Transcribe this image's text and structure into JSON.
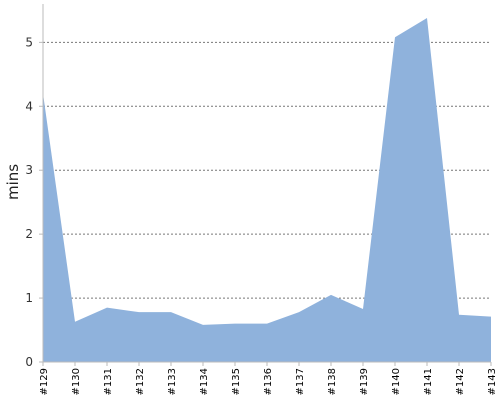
{
  "chart_data": {
    "type": "area",
    "title": "",
    "xlabel": "",
    "ylabel": "mins",
    "categories": [
      "#129",
      "#130",
      "#131",
      "#132",
      "#133",
      "#134",
      "#135",
      "#136",
      "#137",
      "#138",
      "#139",
      "#140",
      "#141",
      "#142",
      "#143"
    ],
    "series": [
      {
        "values": [
          4.2,
          0.63,
          0.85,
          0.78,
          0.78,
          0.58,
          0.6,
          0.6,
          0.78,
          1.05,
          0.83,
          5.08,
          5.38,
          0.74,
          0.71
        ]
      }
    ],
    "y_ticks": [
      "0",
      "1",
      "2",
      "3",
      "4",
      "5"
    ],
    "ylim": [
      0,
      5.6
    ],
    "grid": "horizontal-dashed",
    "legend": "none",
    "colors": {
      "area_fill": "#8fb2dc",
      "grid": "#777777",
      "axis": "#bbbbbb"
    }
  }
}
